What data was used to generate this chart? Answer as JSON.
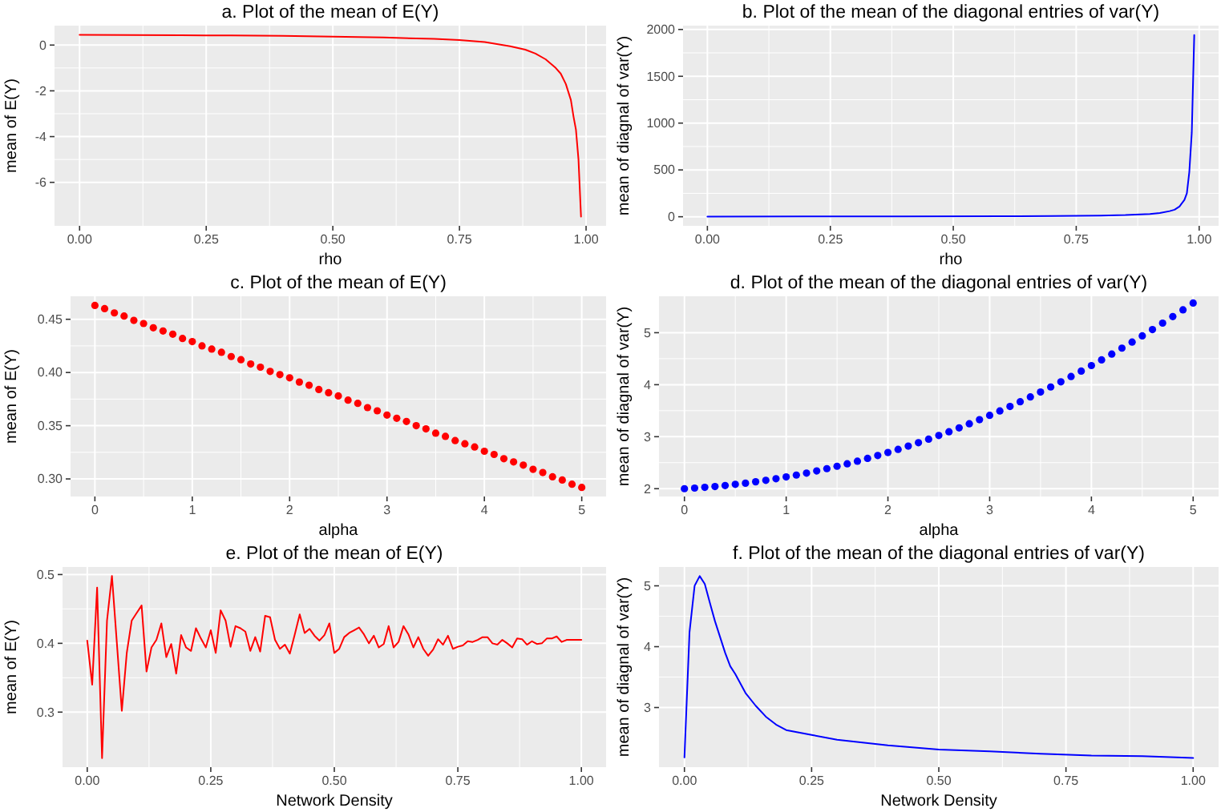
{
  "chart_data": [
    {
      "type": "line",
      "title": "a. Plot of the mean of E(Y)",
      "xlabel": "rho",
      "ylabel": "mean of E(Y)",
      "color": "#ff0000",
      "grid": true,
      "x": [
        0,
        0.1,
        0.2,
        0.3,
        0.4,
        0.5,
        0.6,
        0.7,
        0.75,
        0.8,
        0.85,
        0.88,
        0.9,
        0.92,
        0.94,
        0.95,
        0.96,
        0.97,
        0.975,
        0.98,
        0.985,
        0.99
      ],
      "values": [
        0.45,
        0.44,
        0.43,
        0.42,
        0.4,
        0.37,
        0.33,
        0.27,
        0.22,
        0.13,
        -0.05,
        -0.2,
        -0.37,
        -0.62,
        -1.0,
        -1.25,
        -1.7,
        -2.4,
        -3.1,
        -3.7,
        -5.0,
        -7.5
      ],
      "xlim": [
        -0.0495,
        1.0395
      ],
      "xticks": [
        {
          "value": 0,
          "label": "0.00"
        },
        0.25,
        {
          "value": 0.5,
          "label": "0.50"
        },
        0.75,
        {
          "value": 1,
          "label": "1.00"
        }
      ],
      "ylim": [
        -7.9,
        0.85
      ],
      "yticks": [
        -6,
        -4,
        -2,
        0
      ]
    },
    {
      "type": "line",
      "title": "b. Plot of the mean of the diagonal entries of var(Y)",
      "xlabel": "rho",
      "ylabel": "mean of diagnal of var(Y)",
      "color": "#0000ff",
      "grid": true,
      "x": [
        0,
        0.2,
        0.4,
        0.6,
        0.7,
        0.8,
        0.85,
        0.9,
        0.92,
        0.94,
        0.95,
        0.96,
        0.97,
        0.975,
        0.98,
        0.985,
        0.99
      ],
      "values": [
        2,
        2.5,
        3,
        5,
        7,
        12,
        18,
        30,
        40,
        60,
        75,
        110,
        180,
        250,
        480,
        900,
        1940
      ],
      "xlim": [
        -0.0495,
        1.0395
      ],
      "xticks": [
        {
          "value": 0,
          "label": "0.00"
        },
        0.25,
        {
          "value": 0.5,
          "label": "0.50"
        },
        0.75,
        {
          "value": 1,
          "label": "1.00"
        }
      ],
      "ylim": [
        -97,
        2041
      ],
      "yticks": [
        0,
        500,
        1000,
        1500,
        2000
      ]
    },
    {
      "type": "scatter",
      "title": "c. Plot of the mean of E(Y)",
      "xlabel": "alpha",
      "ylabel": "mean of E(Y)",
      "color": "#ff0000",
      "grid": true,
      "marker": "circle",
      "x": [
        0,
        0.1,
        0.2,
        0.3,
        0.4,
        0.5,
        0.6,
        0.7,
        0.8,
        0.9,
        1,
        1.1,
        1.2,
        1.3,
        1.4,
        1.5,
        1.6,
        1.7,
        1.8,
        1.9,
        2,
        2.1,
        2.2,
        2.3,
        2.4,
        2.5,
        2.6,
        2.7,
        2.8,
        2.9,
        3,
        3.1,
        3.2,
        3.3,
        3.4,
        3.5,
        3.6,
        3.7,
        3.8,
        3.9,
        4,
        4.1,
        4.2,
        4.3,
        4.4,
        4.5,
        4.6,
        4.7,
        4.8,
        4.9,
        5
      ],
      "values": [
        0.463,
        0.46,
        0.456,
        0.453,
        0.449,
        0.446,
        0.442,
        0.439,
        0.436,
        0.432,
        0.429,
        0.425,
        0.422,
        0.419,
        0.415,
        0.412,
        0.408,
        0.405,
        0.401,
        0.398,
        0.395,
        0.391,
        0.388,
        0.384,
        0.381,
        0.378,
        0.374,
        0.371,
        0.367,
        0.364,
        0.36,
        0.357,
        0.354,
        0.35,
        0.347,
        0.343,
        0.34,
        0.336,
        0.333,
        0.33,
        0.326,
        0.323,
        0.319,
        0.316,
        0.313,
        0.309,
        0.306,
        0.302,
        0.299,
        0.295,
        0.292
      ],
      "xlim": [
        -0.25,
        5.25
      ],
      "xticks": [
        0,
        1,
        2,
        3,
        4,
        5
      ],
      "ylim": [
        0.2835,
        0.4716
      ],
      "yticks": [
        {
          "value": 0.3,
          "label": "0.30"
        },
        0.35,
        {
          "value": 0.4,
          "label": "0.40"
        },
        0.45
      ]
    },
    {
      "type": "scatter",
      "title": "d. Plot of the mean of the diagonal entries of var(Y)",
      "xlabel": "alpha",
      "ylabel": "mean of diagnal of var(Y)",
      "color": "#0000ff",
      "grid": true,
      "marker": "circle",
      "x": [
        0,
        0.1,
        0.2,
        0.3,
        0.4,
        0.5,
        0.6,
        0.7,
        0.8,
        0.9,
        1,
        1.1,
        1.2,
        1.3,
        1.4,
        1.5,
        1.6,
        1.7,
        1.8,
        1.9,
        2,
        2.1,
        2.2,
        2.3,
        2.4,
        2.5,
        2.6,
        2.7,
        2.8,
        2.9,
        3,
        3.1,
        3.2,
        3.3,
        3.4,
        3.5,
        3.6,
        3.7,
        3.8,
        3.9,
        4,
        4.1,
        4.2,
        4.3,
        4.4,
        4.5,
        4.6,
        4.7,
        4.8,
        4.9,
        5
      ],
      "values": [
        2.0,
        2.012,
        2.026,
        2.042,
        2.061,
        2.083,
        2.106,
        2.133,
        2.161,
        2.192,
        2.226,
        2.262,
        2.3,
        2.341,
        2.385,
        2.431,
        2.479,
        2.529,
        2.583,
        2.638,
        2.696,
        2.756,
        2.819,
        2.885,
        2.952,
        3.023,
        3.095,
        3.17,
        3.248,
        3.328,
        3.41,
        3.495,
        3.582,
        3.672,
        3.764,
        3.859,
        3.956,
        4.055,
        4.157,
        4.261,
        4.368,
        4.477,
        4.589,
        4.703,
        4.82,
        4.939,
        5.06,
        5.184,
        5.31,
        5.439,
        5.57
      ],
      "xlim": [
        -0.25,
        5.25
      ],
      "xticks": [
        0,
        1,
        2,
        3,
        4,
        5
      ],
      "ylim": [
        1.85,
        5.7
      ],
      "yticks": [
        2,
        3,
        4,
        5
      ]
    },
    {
      "type": "line",
      "title": "e. Plot of the mean of E(Y)",
      "xlabel": "Network Density",
      "ylabel": "mean of E(Y)",
      "color": "#ff0000",
      "grid": true,
      "x": [
        0,
        0.01,
        0.02,
        0.03,
        0.04,
        0.05,
        0.06,
        0.07,
        0.08,
        0.09,
        0.1,
        0.11,
        0.12,
        0.13,
        0.14,
        0.15,
        0.16,
        0.17,
        0.18,
        0.19,
        0.2,
        0.21,
        0.22,
        0.23,
        0.24,
        0.25,
        0.26,
        0.27,
        0.28,
        0.29,
        0.3,
        0.31,
        0.32,
        0.33,
        0.34,
        0.35,
        0.36,
        0.37,
        0.38,
        0.39,
        0.4,
        0.41,
        0.42,
        0.43,
        0.44,
        0.45,
        0.46,
        0.47,
        0.48,
        0.49,
        0.5,
        0.51,
        0.52,
        0.53,
        0.54,
        0.55,
        0.56,
        0.57,
        0.58,
        0.59,
        0.6,
        0.61,
        0.62,
        0.63,
        0.64,
        0.65,
        0.66,
        0.67,
        0.68,
        0.69,
        0.7,
        0.71,
        0.72,
        0.73,
        0.74,
        0.75,
        0.76,
        0.77,
        0.78,
        0.79,
        0.8,
        0.81,
        0.82,
        0.83,
        0.84,
        0.85,
        0.86,
        0.87,
        0.88,
        0.89,
        0.9,
        0.91,
        0.92,
        0.93,
        0.94,
        0.95,
        0.96,
        0.97,
        0.98,
        0.99,
        1
      ],
      "values": [
        0.404,
        0.34,
        0.481,
        0.233,
        0.433,
        0.498,
        0.4,
        0.302,
        0.386,
        0.433,
        0.444,
        0.455,
        0.359,
        0.394,
        0.405,
        0.429,
        0.38,
        0.399,
        0.356,
        0.412,
        0.394,
        0.389,
        0.422,
        0.407,
        0.394,
        0.419,
        0.386,
        0.448,
        0.433,
        0.395,
        0.425,
        0.422,
        0.417,
        0.389,
        0.409,
        0.388,
        0.44,
        0.438,
        0.405,
        0.392,
        0.398,
        0.385,
        0.413,
        0.442,
        0.415,
        0.421,
        0.411,
        0.404,
        0.412,
        0.429,
        0.386,
        0.392,
        0.409,
        0.415,
        0.419,
        0.423,
        0.413,
        0.4,
        0.411,
        0.394,
        0.399,
        0.425,
        0.394,
        0.402,
        0.425,
        0.413,
        0.394,
        0.409,
        0.392,
        0.382,
        0.391,
        0.406,
        0.398,
        0.411,
        0.392,
        0.395,
        0.397,
        0.403,
        0.402,
        0.405,
        0.409,
        0.409,
        0.4,
        0.398,
        0.405,
        0.4,
        0.394,
        0.407,
        0.406,
        0.398,
        0.403,
        0.399,
        0.4,
        0.407,
        0.407,
        0.41,
        0.402,
        0.405,
        0.405,
        0.405,
        0.405
      ],
      "xlim": [
        -0.05,
        1.05
      ],
      "xticks": [
        {
          "value": 0,
          "label": "0.00"
        },
        0.25,
        {
          "value": 0.5,
          "label": "0.50"
        },
        0.75,
        {
          "value": 1,
          "label": "1.00"
        }
      ],
      "ylim": [
        0.22,
        0.511
      ],
      "yticks": [
        0.3,
        0.4,
        0.5
      ]
    },
    {
      "type": "line",
      "title": "f. Plot of the mean of the diagonal entries of var(Y)",
      "xlabel": "Network Density",
      "ylabel": "mean of diagnal of var(Y)",
      "color": "#0000ff",
      "grid": true,
      "x": [
        0,
        0.01,
        0.02,
        0.03,
        0.04,
        0.05,
        0.06,
        0.07,
        0.08,
        0.09,
        0.1,
        0.12,
        0.14,
        0.16,
        0.18,
        0.2,
        0.25,
        0.3,
        0.4,
        0.5,
        0.6,
        0.7,
        0.8,
        0.9,
        1
      ],
      "values": [
        2.18,
        4.24,
        5.0,
        5.16,
        5.03,
        4.72,
        4.42,
        4.16,
        3.9,
        3.68,
        3.55,
        3.24,
        3.03,
        2.85,
        2.72,
        2.63,
        2.55,
        2.47,
        2.38,
        2.31,
        2.28,
        2.24,
        2.21,
        2.2,
        2.17
      ],
      "xlim": [
        -0.05,
        1.05
      ],
      "xticks": [
        {
          "value": 0,
          "label": "0.00"
        },
        0.25,
        {
          "value": 0.5,
          "label": "0.50"
        },
        0.75,
        {
          "value": 1,
          "label": "1.00"
        }
      ],
      "ylim": [
        2.02,
        5.31
      ],
      "yticks": [
        3,
        4,
        5
      ]
    }
  ]
}
